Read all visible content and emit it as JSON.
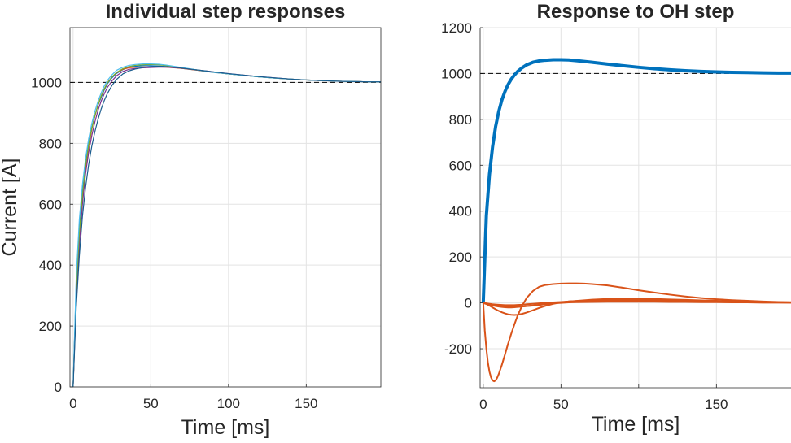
{
  "chart_data": [
    {
      "type": "line",
      "title": "Individual step responses",
      "xlabel": "Time [ms]",
      "ylabel": "Current [A]",
      "xlim": [
        -2,
        198
      ],
      "ylim": [
        0,
        1180
      ],
      "xticks": [
        0,
        50,
        100,
        150
      ],
      "yticks": [
        0,
        200,
        400,
        600,
        800,
        1000
      ],
      "grid": true,
      "reference": {
        "y": 1000,
        "style": "dashed",
        "color": "#000000"
      },
      "series": [
        {
          "color": "#0072BD",
          "x": [
            0,
            2,
            4,
            6,
            8,
            10,
            12,
            14,
            16,
            18,
            20,
            22,
            25,
            28,
            32,
            36,
            40,
            45,
            50,
            55,
            60,
            70,
            80,
            90,
            100,
            110,
            120,
            130,
            140,
            150,
            160,
            170,
            180,
            190,
            198
          ],
          "y": [
            0,
            340,
            520,
            640,
            730,
            800,
            850,
            890,
            925,
            950,
            975,
            995,
            1015,
            1030,
            1042,
            1050,
            1053,
            1055,
            1055,
            1054,
            1052,
            1046,
            1040,
            1033,
            1028,
            1023,
            1018,
            1014,
            1011,
            1008,
            1006,
            1004,
            1003,
            1002,
            1002
          ]
        },
        {
          "color": "#D95319",
          "x": [
            0,
            2,
            4,
            6,
            8,
            10,
            12,
            14,
            16,
            18,
            20,
            22,
            25,
            28,
            32,
            36,
            40,
            45,
            50,
            55,
            60,
            70,
            80,
            90,
            100,
            110,
            120,
            130,
            140,
            150,
            160,
            170,
            180,
            190,
            198
          ],
          "y": [
            0,
            300,
            490,
            620,
            720,
            790,
            845,
            890,
            925,
            955,
            978,
            998,
            1018,
            1032,
            1043,
            1048,
            1050,
            1051,
            1051,
            1051,
            1050,
            1046,
            1040,
            1034,
            1028,
            1023,
            1018,
            1014,
            1011,
            1008,
            1006,
            1004,
            1003,
            1002,
            1002
          ]
        },
        {
          "color": "#7E2F8E",
          "x": [
            0,
            2,
            4,
            6,
            8,
            10,
            12,
            14,
            16,
            18,
            20,
            22,
            25,
            28,
            32,
            36,
            40,
            45,
            50,
            55,
            60,
            70,
            80,
            90,
            100,
            110,
            120,
            130,
            140,
            150,
            160,
            170,
            180,
            190,
            198
          ],
          "y": [
            0,
            280,
            470,
            600,
            700,
            770,
            825,
            870,
            908,
            938,
            962,
            983,
            1005,
            1022,
            1036,
            1043,
            1046,
            1048,
            1049,
            1050,
            1050,
            1047,
            1041,
            1035,
            1029,
            1024,
            1019,
            1015,
            1011,
            1008,
            1006,
            1004,
            1003,
            1002,
            1002
          ]
        },
        {
          "color": "#77AC30",
          "x": [
            0,
            2,
            4,
            6,
            8,
            10,
            12,
            14,
            16,
            18,
            20,
            22,
            25,
            28,
            32,
            36,
            40,
            45,
            50,
            55,
            60,
            70,
            80,
            90,
            100,
            110,
            120,
            130,
            140,
            150,
            160,
            170,
            180,
            190,
            198
          ],
          "y": [
            0,
            320,
            505,
            630,
            725,
            795,
            848,
            890,
            925,
            955,
            978,
            998,
            1018,
            1033,
            1045,
            1052,
            1056,
            1058,
            1059,
            1058,
            1055,
            1048,
            1041,
            1034,
            1028,
            1023,
            1018,
            1014,
            1011,
            1008,
            1006,
            1004,
            1003,
            1002,
            1002
          ]
        },
        {
          "color": "#4DBEEE",
          "x": [
            0,
            2,
            4,
            6,
            8,
            10,
            12,
            14,
            16,
            18,
            20,
            22,
            25,
            28,
            32,
            36,
            40,
            45,
            50,
            55,
            60,
            70,
            80,
            90,
            100,
            110,
            120,
            130,
            140,
            150,
            160,
            170,
            180,
            190,
            198
          ],
          "y": [
            0,
            360,
            550,
            665,
            750,
            815,
            865,
            905,
            938,
            965,
            988,
            1006,
            1025,
            1040,
            1050,
            1056,
            1059,
            1061,
            1061,
            1060,
            1057,
            1049,
            1041,
            1034,
            1028,
            1023,
            1018,
            1014,
            1011,
            1008,
            1006,
            1004,
            1003,
            1002,
            1002
          ]
        },
        {
          "color": "#1A5C8E",
          "x": [
            0,
            2,
            4,
            6,
            8,
            10,
            12,
            14,
            16,
            18,
            20,
            22,
            25,
            28,
            32,
            36,
            40,
            45,
            50,
            55,
            60,
            70,
            80,
            90,
            100,
            110,
            120,
            130,
            140,
            150,
            160,
            170,
            180,
            190,
            198
          ],
          "y": [
            0,
            260,
            430,
            560,
            655,
            730,
            790,
            838,
            878,
            912,
            940,
            963,
            990,
            1010,
            1028,
            1038,
            1044,
            1049,
            1052,
            1053,
            1052,
            1047,
            1041,
            1035,
            1029,
            1024,
            1019,
            1015,
            1011,
            1008,
            1006,
            1004,
            1003,
            1002,
            1002
          ]
        }
      ]
    },
    {
      "type": "line",
      "title": "Response to OH step",
      "xlabel": "Time [ms]",
      "ylabel": "",
      "xlim": [
        -2,
        198
      ],
      "ylim": [
        -370,
        1200
      ],
      "xticks": [
        0,
        50,
        100,
        150
      ],
      "yticks": [
        -200,
        0,
        200,
        400,
        600,
        800,
        1000,
        1200
      ],
      "grid": true,
      "reference": {
        "y": 1000,
        "style": "dashed",
        "color": "#000000"
      },
      "series": [
        {
          "color": "#0072BD",
          "width": 4,
          "x": [
            0,
            2,
            4,
            6,
            8,
            10,
            12,
            14,
            16,
            18,
            20,
            22,
            25,
            28,
            32,
            36,
            40,
            45,
            50,
            55,
            60,
            70,
            80,
            90,
            100,
            110,
            120,
            130,
            140,
            150,
            160,
            170,
            180,
            190,
            198
          ],
          "y": [
            0,
            380,
            560,
            680,
            770,
            835,
            885,
            922,
            952,
            975,
            993,
            1008,
            1025,
            1038,
            1049,
            1055,
            1058,
            1060,
            1060,
            1059,
            1056,
            1049,
            1041,
            1034,
            1027,
            1021,
            1016,
            1012,
            1009,
            1007,
            1005,
            1004,
            1003,
            1002,
            1002
          ]
        },
        {
          "color": "#D95319",
          "width": 2,
          "x": [
            0,
            1,
            2,
            3,
            4,
            5,
            6,
            7,
            8,
            9,
            10,
            12,
            14,
            16,
            18,
            20,
            22,
            25,
            28,
            32,
            36,
            40,
            45,
            50,
            55,
            60,
            65,
            70,
            80,
            90,
            100,
            110,
            120,
            130,
            140,
            150,
            160,
            170,
            180,
            190,
            198
          ],
          "y": [
            0,
            -120,
            -200,
            -260,
            -300,
            -325,
            -338,
            -342,
            -338,
            -326,
            -310,
            -270,
            -225,
            -178,
            -135,
            -95,
            -58,
            -12,
            22,
            52,
            70,
            78,
            82,
            84,
            85,
            85,
            84,
            82,
            76,
            66,
            55,
            45,
            36,
            28,
            21,
            16,
            12,
            9,
            6,
            4,
            3
          ]
        },
        {
          "color": "#D95319",
          "width": 2,
          "x": [
            0,
            2,
            4,
            6,
            8,
            10,
            12,
            14,
            16,
            18,
            20,
            22,
            25,
            28,
            32,
            36,
            40,
            45,
            50,
            55,
            60,
            70,
            80,
            90,
            100,
            110,
            120,
            130,
            140,
            150,
            160,
            170,
            180,
            190,
            198
          ],
          "y": [
            0,
            -5,
            -12,
            -20,
            -28,
            -35,
            -41,
            -46,
            -50,
            -52,
            -53,
            -52,
            -48,
            -42,
            -32,
            -22,
            -13,
            -4,
            2,
            6,
            8,
            10,
            11,
            11,
            10,
            9,
            8,
            7,
            6,
            5,
            4,
            3,
            2,
            2,
            1
          ]
        },
        {
          "color": "#D95319",
          "width": 2,
          "x": [
            0,
            2,
            4,
            6,
            8,
            10,
            12,
            14,
            16,
            18,
            20,
            22,
            25,
            28,
            32,
            36,
            40,
            45,
            50,
            55,
            60,
            70,
            80,
            90,
            100,
            110,
            120,
            130,
            140,
            150,
            160,
            170,
            180,
            190,
            198
          ],
          "y": [
            0,
            -3,
            -6,
            -9,
            -12,
            -14,
            -16,
            -17,
            -18,
            -18,
            -18,
            -17,
            -16,
            -14,
            -12,
            -9,
            -6,
            -2,
            2,
            6,
            9,
            14,
            17,
            18,
            18,
            17,
            15,
            13,
            11,
            9,
            7,
            5,
            4,
            3,
            2
          ]
        },
        {
          "color": "#D95319",
          "width": 2,
          "x": [
            0,
            2,
            4,
            6,
            8,
            10,
            12,
            14,
            16,
            18,
            20,
            22,
            25,
            28,
            32,
            36,
            40,
            45,
            50,
            55,
            60,
            70,
            80,
            90,
            100,
            110,
            120,
            130,
            140,
            150,
            160,
            170,
            180,
            190,
            198
          ],
          "y": [
            0,
            -4,
            -8,
            -11,
            -14,
            -16,
            -18,
            -19,
            -20,
            -20,
            -19,
            -18,
            -16,
            -14,
            -11,
            -8,
            -5,
            -2,
            0,
            2,
            3,
            4,
            5,
            5,
            5,
            5,
            4,
            4,
            3,
            3,
            2,
            2,
            1,
            1,
            1
          ]
        },
        {
          "color": "#D95319",
          "width": 2,
          "x": [
            0,
            2,
            4,
            6,
            8,
            10,
            12,
            14,
            16,
            18,
            20,
            22,
            25,
            28,
            32,
            36,
            40,
            45,
            50,
            55,
            60,
            70,
            80,
            90,
            100,
            110,
            120,
            130,
            140,
            150,
            160,
            170,
            180,
            190,
            198
          ],
          "y": [
            0,
            -2,
            -4,
            -6,
            -7,
            -8,
            -9,
            -10,
            -10,
            -10,
            -10,
            -9,
            -8,
            -6,
            -4,
            -2,
            0,
            2,
            4,
            6,
            8,
            11,
            13,
            14,
            14,
            13,
            12,
            10,
            9,
            7,
            6,
            4,
            3,
            2,
            2
          ]
        }
      ]
    }
  ],
  "tick_labels": {
    "left_x": [
      "0",
      "50",
      "100",
      "150"
    ],
    "left_y": [
      "0",
      "200",
      "400",
      "600",
      "800",
      "1000"
    ],
    "right_x": [
      "0",
      "50",
      "150"
    ],
    "right_y": [
      "-200",
      "0",
      "200",
      "400",
      "600",
      "800",
      "1000",
      "1200"
    ]
  }
}
